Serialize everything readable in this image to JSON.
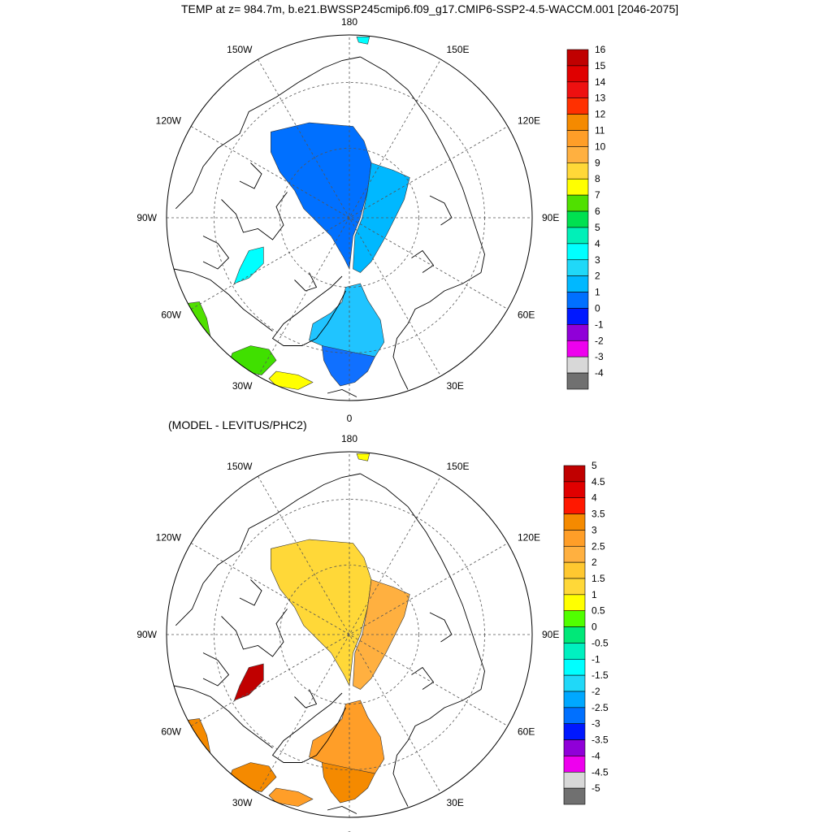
{
  "title": "TEMP at z= 984.7m, b.e21.BWSSP245cmip6.f09_g17.CMIP6-SSP2-4.5-WACCM.001 [2046-2075]",
  "subtitle": "(MODEL - LEVITUS/PHC2)",
  "lon_labels": {
    "top": "180",
    "bottom": "0",
    "left": "90W",
    "right": "90E",
    "w150": "150W",
    "e150": "150E",
    "w120": "120W",
    "e120": "120E",
    "w60": "60W",
    "e60": "60E",
    "w30": "30W",
    "e30": "30E"
  },
  "panels": [
    {
      "name": "model-temperature",
      "colorbar": {
        "labels": [
          "16",
          "15",
          "14",
          "13",
          "12",
          "11",
          "10",
          "9",
          "8",
          "7",
          "6",
          "5",
          "4",
          "3",
          "2",
          "1",
          "0",
          "-1",
          "-2",
          "-3",
          "-4"
        ],
        "colors": [
          "#c00000",
          "#e00000",
          "#ee1010",
          "#ff3000",
          "#f58a00",
          "#ff9e28",
          "#ffb040",
          "#ffd838",
          "#ffff00",
          "#50e000",
          "#00e050",
          "#00f0b8",
          "#00ffff",
          "#20d8f8",
          "#00b8ff",
          "#0070ff",
          "#0018ff",
          "#9000d8",
          "#ee00ee",
          "#d8d8d8",
          "#707070"
        ]
      },
      "fields": [
        {
          "name": "central-arctic",
          "color": "#0070ff"
        },
        {
          "name": "eurasian-basin",
          "color": "#00b8ff"
        },
        {
          "name": "fram-strait",
          "color": "#20c4ff"
        },
        {
          "name": "greenland-sea",
          "color": "#1070ff"
        },
        {
          "name": "baffin-bay",
          "color": "#00ffff"
        },
        {
          "name": "labrador-sea",
          "color": "#50e000"
        },
        {
          "name": "irminger-sea",
          "color": "#40e000"
        },
        {
          "name": "iceland-basin",
          "color": "#ffff00"
        },
        {
          "name": "bering-sea",
          "color": "#00ffff"
        }
      ]
    },
    {
      "name": "model-minus-levitus",
      "colorbar": {
        "labels": [
          "5",
          "4.5",
          "4",
          "3.5",
          "3",
          "2.5",
          "2",
          "1.5",
          "1",
          "0.5",
          "0",
          "-0.5",
          "-1",
          "-1.5",
          "-2",
          "-2.5",
          "-3",
          "-3.5",
          "-4",
          "-4.5",
          "-5"
        ],
        "colors": [
          "#c00000",
          "#e00000",
          "#ff1800",
          "#f58a00",
          "#ff9e28",
          "#ffb040",
          "#ffc830",
          "#ffd838",
          "#ffff00",
          "#50ff00",
          "#00e878",
          "#00f0c0",
          "#00ffff",
          "#20d8f8",
          "#00a8ff",
          "#0070ff",
          "#0018ff",
          "#9000d8",
          "#ee00ee",
          "#d8d8d8",
          "#707070"
        ]
      },
      "fields": [
        {
          "name": "central-arctic",
          "color": "#ffd838"
        },
        {
          "name": "eurasian-basin",
          "color": "#ffb040"
        },
        {
          "name": "fram-strait",
          "color": "#ff9e28"
        },
        {
          "name": "greenland-sea",
          "color": "#f58a00"
        },
        {
          "name": "baffin-bay",
          "color": "#c00000"
        },
        {
          "name": "labrador-sea",
          "color": "#f58a00"
        },
        {
          "name": "irminger-sea",
          "color": "#f58a00"
        },
        {
          "name": "iceland-basin",
          "color": "#ff9e28"
        },
        {
          "name": "bering-sea",
          "color": "#ffff00"
        }
      ]
    }
  ]
}
